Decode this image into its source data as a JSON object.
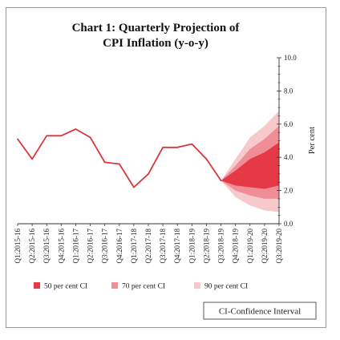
{
  "chart_data": {
    "type": "line",
    "title": "Chart 1: Quarterly Projection of",
    "subtitle": "CPI Inflation (y-o-y)",
    "xlabel": "",
    "ylabel": "Per cent",
    "ylim": [
      0,
      10
    ],
    "y_ticks": [
      "0.0",
      "2.0",
      "4.0",
      "6.0",
      "8.0",
      "10.0"
    ],
    "categories": [
      "Q1:2015-16",
      "Q2:2015-16",
      "Q3:2015-16",
      "Q4:2015-16",
      "Q1:2016-17",
      "Q2:2016-17",
      "Q3:2016-17",
      "Q4:2016-17",
      "Q1:2017-18",
      "Q2:2017-18",
      "Q3:2017-18",
      "Q4:2017-18",
      "Q1:2018-19",
      "Q2:2018-19",
      "Q3:2018-19",
      "Q4:2018-19",
      "Q1:2019-20",
      "Q2:2019-20",
      "Q3:2019-20"
    ],
    "series": [
      {
        "values": [
          5.1,
          3.9,
          5.3,
          5.3,
          5.7,
          5.2,
          3.7,
          3.6,
          2.2,
          3.0,
          4.6,
          4.6,
          4.8,
          3.9,
          2.6,
          null,
          null,
          null,
          null
        ],
        "color": "#d9363e"
      }
    ],
    "bands": [
      {
        "name": "90 per cent CI",
        "color": "#f7c9cc",
        "lower": [
          2.6,
          1.6,
          1.1,
          0.8,
          0.7
        ],
        "upper": [
          2.6,
          3.9,
          5.2,
          5.9,
          6.8
        ]
      },
      {
        "name": "70 per cent CI",
        "color": "#ef8e96",
        "lower": [
          2.6,
          2.0,
          1.7,
          1.5,
          1.5
        ],
        "upper": [
          2.6,
          3.5,
          4.5,
          5.1,
          5.9
        ]
      },
      {
        "name": "50 per cent CI",
        "color": "#e63946",
        "lower": [
          2.6,
          2.3,
          2.2,
          2.1,
          2.3
        ],
        "upper": [
          2.6,
          3.2,
          3.9,
          4.3,
          4.9
        ]
      }
    ],
    "band_categories": [
      "Q3:2018-19",
      "Q4:2018-19",
      "Q1:2019-20",
      "Q2:2019-20",
      "Q3:2019-20"
    ],
    "legend": [
      {
        "label": "50 per cent CI",
        "color": "#e63946"
      },
      {
        "label": "70 per cent CI",
        "color": "#ef8e96"
      },
      {
        "label": "90 per cent CI",
        "color": "#f7c9cc"
      }
    ],
    "note": "CI-Confidence Interval",
    "grid": false
  }
}
